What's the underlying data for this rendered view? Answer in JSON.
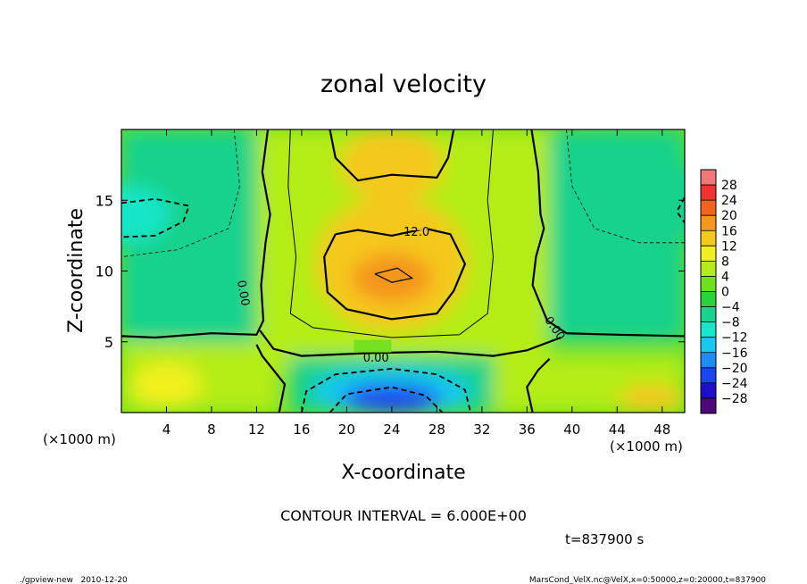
{
  "chart_data": {
    "type": "heatmap",
    "title": "zonal velocity",
    "xlabel": "X-coordinate",
    "ylabel": "Z-coordinate",
    "x_unit_left": "(×1000 m)",
    "x_unit_right": "(×1000 m)",
    "xlim": [
      0,
      50
    ],
    "ylim": [
      0,
      20
    ],
    "x_ticks": [
      "4",
      "8",
      "12",
      "16",
      "20",
      "24",
      "28",
      "32",
      "36",
      "40",
      "44",
      "48"
    ],
    "y_ticks": [
      "5",
      "10",
      "15"
    ],
    "colorbar": {
      "levels": [
        -32,
        -28,
        -24,
        -20,
        -16,
        -12,
        -8,
        -4,
        0,
        4,
        8,
        12,
        16,
        20,
        24,
        28,
        32
      ],
      "labels": [
        "28",
        "24",
        "20",
        "16",
        "12",
        "8",
        "4",
        "0",
        "−4",
        "−8",
        "−12",
        "−16",
        "−20",
        "−24",
        "−28"
      ],
      "colors": [
        "#4b0a78",
        "#1f0fc8",
        "#1a46f0",
        "#1e8cf0",
        "#19c8f0",
        "#19e6c8",
        "#19d28c",
        "#2ad23c",
        "#6ee01e",
        "#b4ec19",
        "#f0f01e",
        "#f5c81e",
        "#f5961e",
        "#f0641e",
        "#f03232",
        "#f07878"
      ]
    },
    "contour_interval_label": "CONTOUR INTERVAL = 6.000E+00",
    "contour_labels": [
      "12.0",
      "0.00",
      "0.00",
      "0.00"
    ],
    "field_features": [
      {
        "x": 0,
        "z": 14,
        "value": -9
      },
      {
        "x": 50,
        "z": 15,
        "value": -8
      },
      {
        "x": 24,
        "z": 9.5,
        "value": 19
      },
      {
        "x": 24,
        "z": 17.5,
        "value": 13
      },
      {
        "x": 24,
        "z": 1,
        "value": -22
      },
      {
        "x": 4,
        "z": 2,
        "value": 11
      },
      {
        "x": 47,
        "z": 1,
        "value": 14
      }
    ],
    "time_label": "t=837900 s"
  },
  "footer": {
    "left": "./gpview-new   2010-12-20",
    "right": "MarsCond_VelX.nc@VelX,x=0:50000,z=0:20000,t=837900"
  }
}
